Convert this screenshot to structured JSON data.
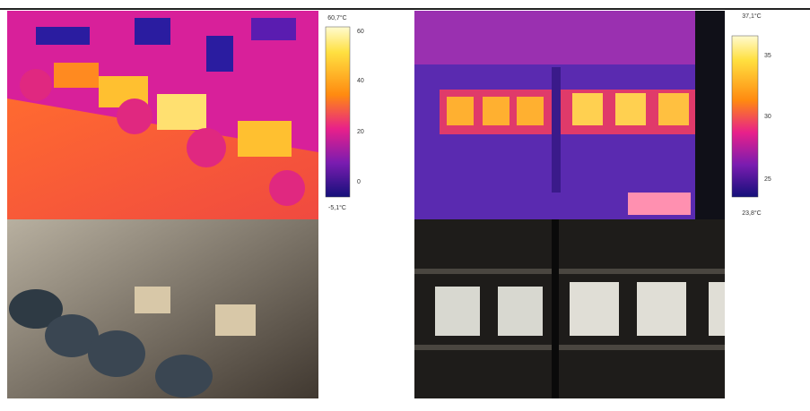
{
  "left_panel": {
    "scale": {
      "max_label": "60,7°C",
      "ticks": [
        "60",
        "40",
        "20",
        "0"
      ],
      "min_label": "-5,1°C"
    }
  },
  "right_panel": {
    "scale": {
      "max_label": "37,1°C",
      "ticks": [
        "35",
        "30",
        "25"
      ],
      "min_label": "23,8°C"
    }
  }
}
